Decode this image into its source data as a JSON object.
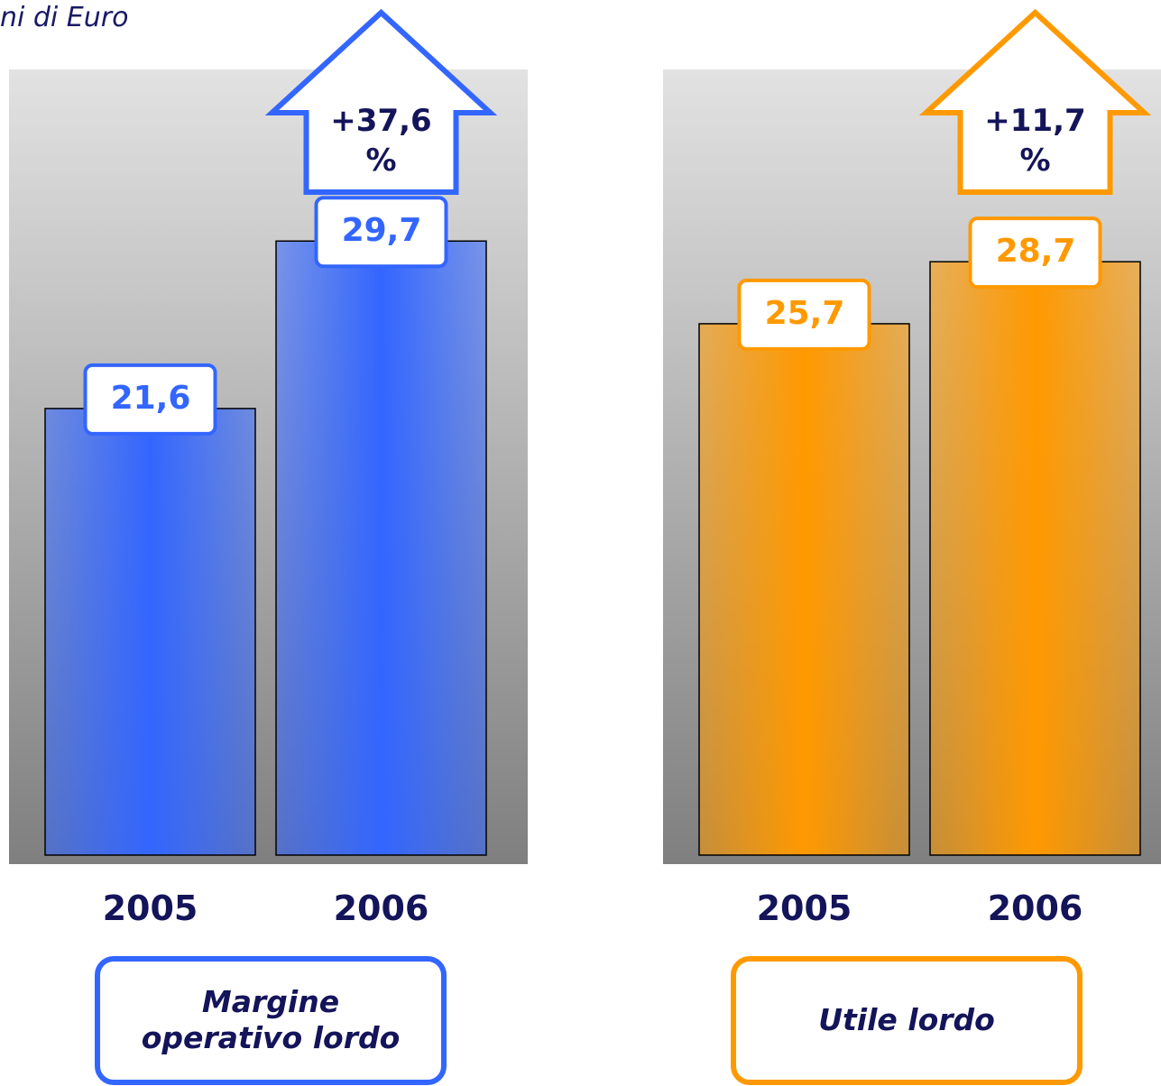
{
  "subtitle": "ni di Euro",
  "chart_data": [
    {
      "type": "bar",
      "title": "Margine operativo lordo",
      "categories": [
        "2005",
        "2006"
      ],
      "values": [
        21.6,
        29.7
      ],
      "value_labels": [
        "21,6",
        "29,7"
      ],
      "annotation": "+37,6 %",
      "color": "#3366ff",
      "ylim": [
        0,
        38
      ]
    },
    {
      "type": "bar",
      "title": "Utile lordo",
      "categories": [
        "2005",
        "2006"
      ],
      "values": [
        25.7,
        28.7
      ],
      "value_labels": [
        "25,7",
        "28,7"
      ],
      "annotation": "+11,7 %",
      "color": "#ff9900",
      "ylim": [
        0,
        38
      ]
    }
  ]
}
